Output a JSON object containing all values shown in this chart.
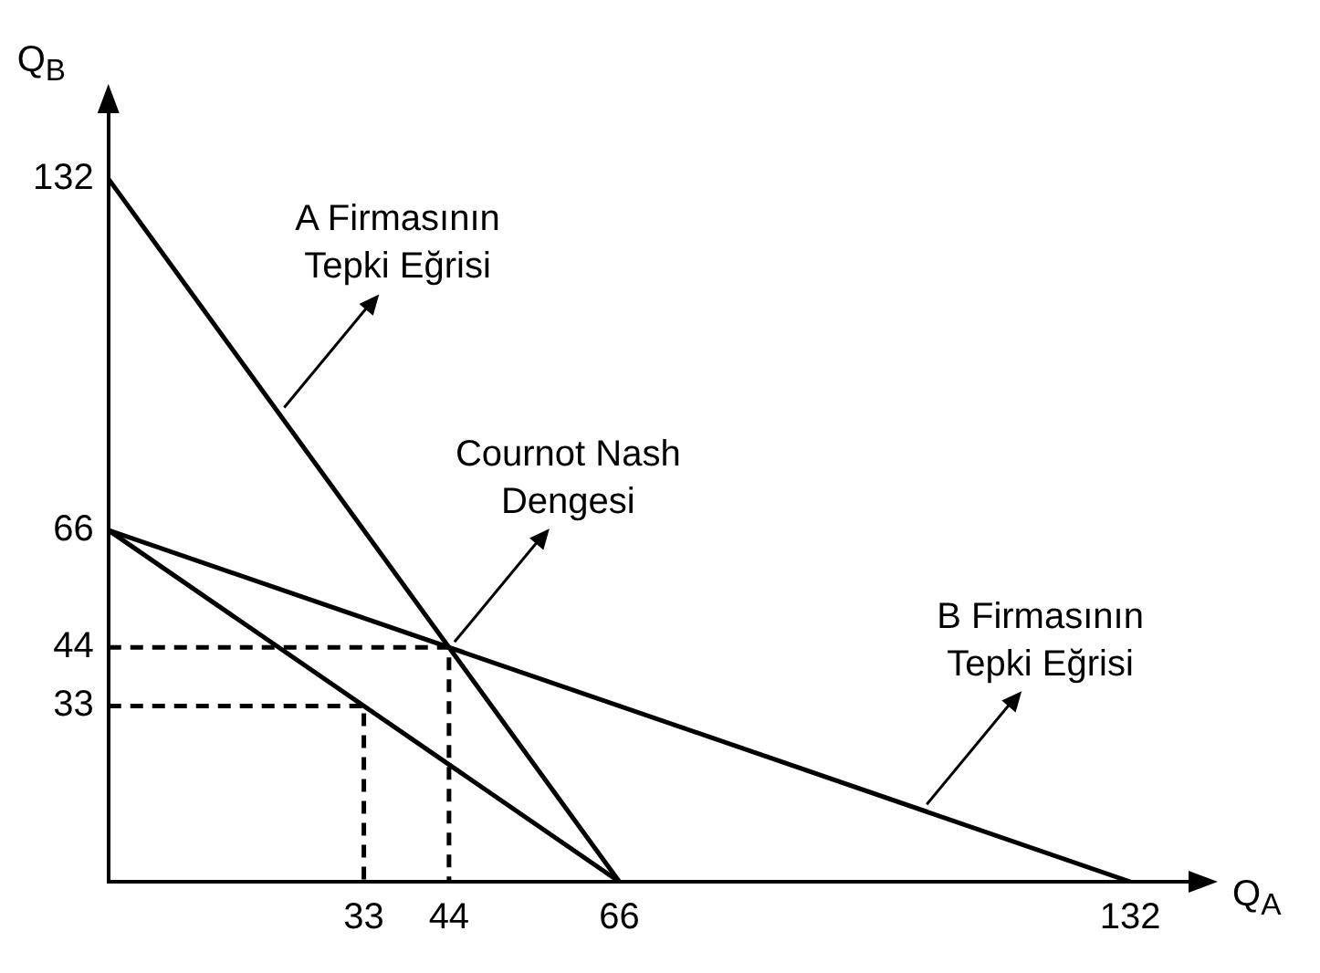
{
  "chart_data": {
    "type": "line",
    "xlabel": "Q$_{A}$",
    "ylabel": "Q$_{B}$",
    "xlim": [
      0,
      140
    ],
    "ylim": [
      0,
      145
    ],
    "xticks": [
      33,
      44,
      66,
      132
    ],
    "yticks": [
      33,
      44,
      66,
      132
    ],
    "grid": false,
    "legend": false,
    "marker": "none",
    "series": [
      {
        "type": "line",
        "color": "#000000",
        "x": [
          0,
          66
        ],
        "values": [
          132,
          0
        ],
        "line_style": "solid"
      },
      {
        "type": "line",
        "color": "#000000",
        "x": [
          0,
          132
        ],
        "values": [
          66,
          0
        ],
        "line_style": "solid"
      },
      {
        "type": "line",
        "color": "#000000",
        "x": [
          0,
          66
        ],
        "values": [
          66,
          0
        ],
        "line_style": "solid"
      },
      {
        "type": "line",
        "color": "#000000",
        "x": [
          0,
          44,
          44
        ],
        "values": [
          44,
          44,
          0
        ],
        "line_style": "dashed"
      },
      {
        "type": "line",
        "color": "#000000",
        "x": [
          0,
          33,
          33
        ],
        "values": [
          33,
          33,
          0
        ],
        "line_style": "dashed"
      }
    ],
    "annotations": [
      {
        "text": "A Firmasının\nTepki Eğrisi",
        "x": 22,
        "y": 88
      },
      {
        "text": "Cournot Nash\nDengesi",
        "x": 44,
        "y": 44
      },
      {
        "text": "B Firmasının\nTepki Eğrisi",
        "x": 105,
        "y": 13.5
      }
    ]
  }
}
